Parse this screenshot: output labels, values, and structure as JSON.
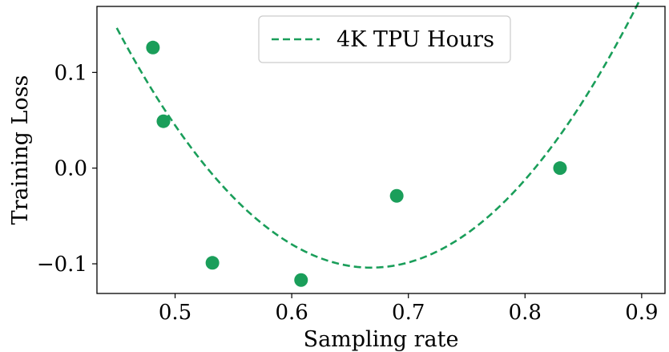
{
  "chart_data": {
    "type": "scatter",
    "xlabel": "Sampling rate",
    "ylabel": "Training Loss",
    "xlim": [
      0.433,
      0.92
    ],
    "ylim": [
      -0.131,
      0.169
    ],
    "xticks": [
      0.5,
      0.6,
      0.7,
      0.8,
      0.9
    ],
    "xtick_labels": [
      "0.5",
      "0.6",
      "0.7",
      "0.8",
      "0.9"
    ],
    "yticks": [
      -0.1,
      0.0,
      0.1
    ],
    "ytick_labels": [
      "−0.1",
      "0.0",
      "0.1"
    ],
    "grid": false,
    "legend_position": "top-center",
    "points": {
      "x": [
        0.481,
        0.49,
        0.532,
        0.608,
        0.69,
        0.83
      ],
      "y": [
        0.126,
        0.049,
        -0.099,
        -0.117,
        -0.029,
        0.0
      ],
      "color": "#1a9e5a"
    },
    "fit_curve": {
      "name": "4K TPU Hours",
      "style": "dashed",
      "color": "#1a9e5a",
      "x_range": [
        0.45,
        0.9
      ],
      "quadratic": {
        "a": 5.27,
        "vertex_x": 0.668,
        "vertex_y": -0.104
      }
    }
  }
}
